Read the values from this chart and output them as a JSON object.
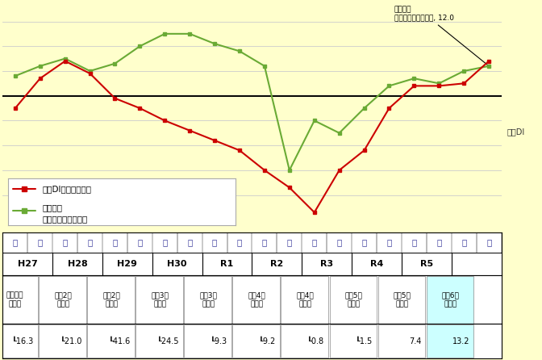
{
  "fig_bg": "#ffffcc",
  "chart_bg": "#ffffcc",
  "table_bg": "#ffffff",
  "red_color": "#cc0000",
  "green_color": "#6aaa35",
  "grid_color": "#cccccc",
  "zero_color": "#000000",
  "highlight_color": "#ccffff",
  "red_y": [
    -5,
    7,
    14,
    9,
    -1,
    -5,
    -10,
    -14,
    -18,
    -22,
    -30,
    -37,
    -47,
    -30,
    -22,
    -5,
    4,
    4,
    5,
    14
  ],
  "green_y": [
    8,
    12,
    15,
    10,
    13,
    20,
    25,
    25,
    21,
    18,
    12,
    -30,
    -10,
    -15,
    -5,
    4,
    7,
    5,
    10,
    12
  ],
  "n_points": 20,
  "ylim": [
    -55,
    35
  ],
  "top_labels": [
    "下",
    "上",
    "下",
    "上",
    "下",
    "上",
    "下",
    "上",
    "下",
    "上",
    "下",
    "上",
    "下",
    "上",
    "下",
    "上",
    "下",
    "上",
    "下",
    "上"
  ],
  "period_labels": [
    "H27",
    "H28",
    "H29",
    "H30",
    "R1",
    "R2",
    "R3",
    "R4",
    "R5"
  ],
  "table_headers": [
    "令和元年\n下半期",
    "令和2年\n上半期",
    "令和2年\n下半期",
    "令和3年\n上半期",
    "令和3年\n下半期",
    "令和4年\n上半期",
    "令和4年\n下半期",
    "令和5年\n上半期",
    "令和5年\n下半期",
    "令和6年\n上半期"
  ],
  "table_values": [
    "┖16.3",
    "┖21.0",
    "┖41.6",
    "┖24.5",
    "┖9.3",
    "┖9.2",
    "┖0.8",
    "┖1.5",
    "7.4",
    "13.2"
  ],
  "red_legend": "景況DI（食品産業）",
  "green_legend_line1": "日銀短観",
  "green_legend_line2": "（全産業・全規模）",
  "annotation_line1": "日銀短観",
  "annotation_line2": "（全産業・全規模）, 12.0",
  "right_label": "景況DI"
}
